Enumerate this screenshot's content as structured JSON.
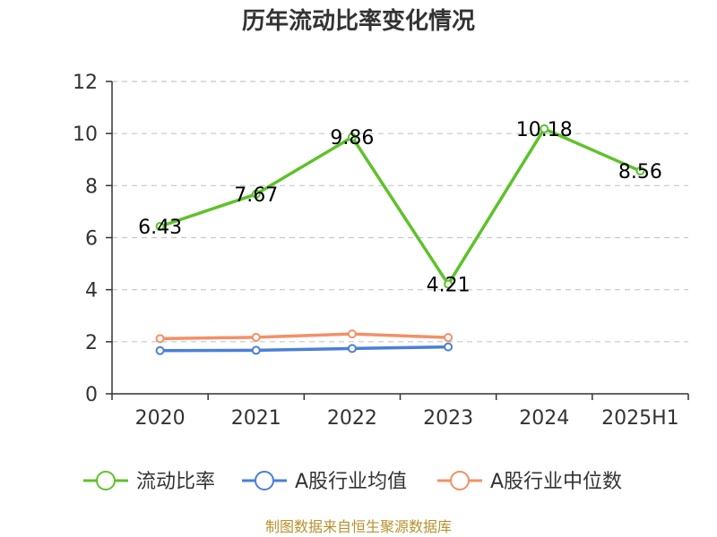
{
  "chart_data": {
    "type": "line",
    "title": "历年流动比率变化情况",
    "categories": [
      "2020",
      "2021",
      "2022",
      "2023",
      "2024",
      "2025H1"
    ],
    "ylim": [
      0,
      12
    ],
    "yticks": [
      0,
      2,
      4,
      6,
      8,
      10,
      12
    ],
    "grid": "horizontal-dashed",
    "legend_position": "bottom",
    "series": [
      {
        "name": "流动比率",
        "color": "#5ec22a",
        "values": [
          6.43,
          7.67,
          9.86,
          4.21,
          10.18,
          8.56
        ],
        "labels": [
          "6.43",
          "7.67",
          "9.86",
          "4.21",
          "10.18",
          "8.56"
        ]
      },
      {
        "name": "A股行业均值",
        "color": "#4a7fd6",
        "values": [
          1.66,
          1.67,
          1.74,
          1.8,
          null,
          null
        ]
      },
      {
        "name": "A股行业中位数",
        "color": "#f39067",
        "values": [
          2.12,
          2.17,
          2.3,
          2.16,
          null,
          null
        ]
      }
    ]
  },
  "source_text": "制图数据来自恒生聚源数据库"
}
